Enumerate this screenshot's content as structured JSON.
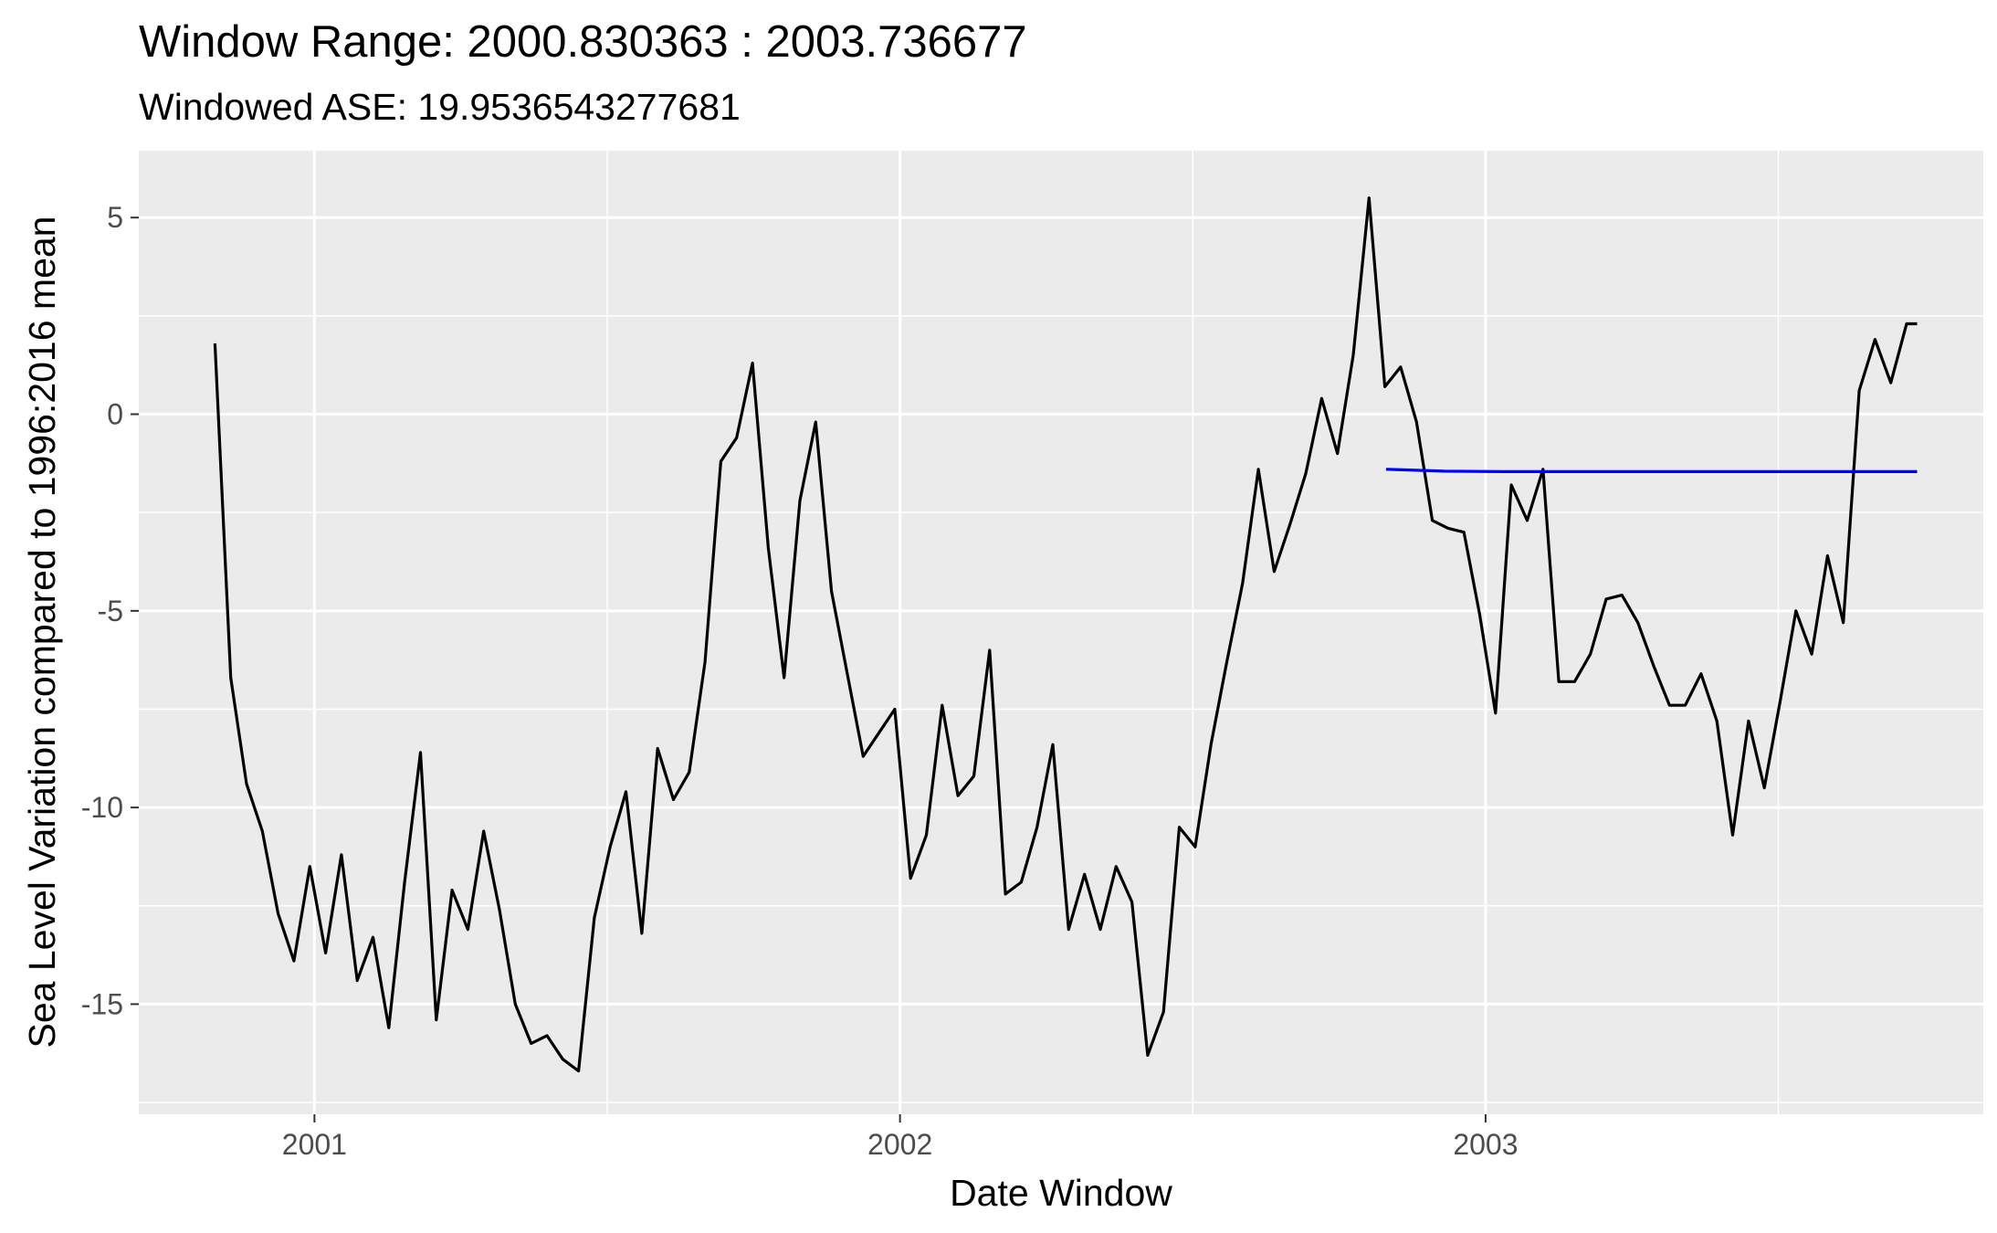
{
  "chart_data": {
    "type": "line",
    "title": "Window Range: 2000.830363 : 2003.736677",
    "subtitle": "Windowed ASE: 19.9536543277681",
    "xlabel": "Date Window",
    "ylabel": "Sea Level Variation compared to 1996:2016 mean",
    "xlim": [
      2000.7,
      2003.85
    ],
    "ylim": [
      -17.8,
      6.7
    ],
    "x_ticks": [
      2001,
      2002,
      2003
    ],
    "x_tick_labels": [
      "2001",
      "2002",
      "2003"
    ],
    "y_ticks": [
      5,
      0,
      -5,
      -10,
      -15
    ],
    "y_tick_labels": [
      "5",
      "0",
      "-5",
      "-10",
      "-15"
    ],
    "grid": true,
    "legend": "none",
    "colors": {
      "panel": "#ebebeb",
      "grid": "#ffffff",
      "observed": "#000000",
      "forecast": "#0000ff"
    },
    "series": [
      {
        "color": "#000000",
        "x": [
          2000.83,
          2000.857,
          2000.884,
          2000.911,
          2000.938,
          2000.965,
          2000.992,
          2001.019,
          2001.046,
          2001.073,
          2001.1,
          2001.127,
          2001.154,
          2001.181,
          2001.208,
          2001.235,
          2001.262,
          2001.289,
          2001.316,
          2001.343,
          2001.37,
          2001.397,
          2001.424,
          2001.451,
          2001.478,
          2001.505,
          2001.532,
          2001.559,
          2001.586,
          2001.613,
          2001.64,
          2001.667,
          2001.694,
          2001.721,
          2001.748,
          2001.775,
          2001.802,
          2001.829,
          2001.856,
          2001.883,
          2001.91,
          2001.937,
          2001.964,
          2001.991,
          2002.018,
          2002.045,
          2002.072,
          2002.099,
          2002.126,
          2002.153,
          2002.18,
          2002.207,
          2002.234,
          2002.261,
          2002.288,
          2002.315,
          2002.342,
          2002.369,
          2002.396,
          2002.423,
          2002.45,
          2002.477,
          2002.504,
          2002.531,
          2002.558,
          2002.585,
          2002.612,
          2002.639,
          2002.666,
          2002.693,
          2002.72,
          2002.747,
          2002.774,
          2002.801,
          2002.828,
          2002.855,
          2002.882,
          2002.909,
          2002.936,
          2002.963,
          2002.99,
          2003.017,
          2003.044,
          2003.071,
          2003.098,
          2003.125,
          2003.152,
          2003.179,
          2003.206,
          2003.233,
          2003.26,
          2003.287,
          2003.314,
          2003.341,
          2003.368,
          2003.395,
          2003.422,
          2003.449,
          2003.476,
          2003.503,
          2003.53,
          2003.557,
          2003.584,
          2003.611,
          2003.638,
          2003.665,
          2003.692,
          2003.719,
          2003.737
        ],
        "values": [
          1.8,
          -6.7,
          -9.4,
          -10.6,
          -12.7,
          -13.9,
          -11.5,
          -13.7,
          -11.2,
          -14.4,
          -13.3,
          -15.6,
          -11.9,
          -8.6,
          -15.4,
          -12.1,
          -13.1,
          -10.6,
          -12.6,
          -15.0,
          -16.0,
          -15.8,
          -16.4,
          -16.7,
          -12.8,
          -11.0,
          -9.6,
          -13.2,
          -8.5,
          -9.8,
          -9.1,
          -6.3,
          -1.2,
          -0.6,
          1.3,
          -3.4,
          -6.7,
          -2.2,
          -0.2,
          -4.5,
          -6.6,
          -8.7,
          -8.1,
          -7.5,
          -11.8,
          -10.7,
          -7.4,
          -9.7,
          -9.2,
          -6.0,
          -12.2,
          -11.9,
          -10.5,
          -8.4,
          -13.1,
          -11.7,
          -13.1,
          -11.5,
          -12.4,
          -16.3,
          -15.2,
          -10.5,
          -11.0,
          -8.4,
          -6.3,
          -4.3,
          -1.4,
          -4.0,
          -2.8,
          -1.5,
          0.4,
          -1.0,
          1.5,
          5.5,
          0.7,
          1.2,
          -0.2,
          -2.7,
          -2.9,
          -3.0,
          -5.1,
          -7.6,
          -1.8,
          -2.7,
          -1.4,
          -6.8,
          -6.8,
          -6.1,
          -4.7,
          -4.6,
          -5.3,
          -6.4,
          -7.4,
          -7.4,
          -6.6,
          -7.8,
          -10.7,
          -7.8,
          -9.5,
          -7.3,
          -5.0,
          -6.1,
          -3.6,
          -5.3,
          0.6,
          1.9,
          0.8,
          2.3,
          2.3
        ]
      },
      {
        "color": "#0000ff",
        "x": [
          2002.83,
          2002.93,
          2003.03,
          2003.13,
          2003.23,
          2003.33,
          2003.43,
          2003.53,
          2003.63,
          2003.737
        ],
        "values": [
          -1.4,
          -1.45,
          -1.46,
          -1.46,
          -1.46,
          -1.46,
          -1.46,
          -1.46,
          -1.46,
          -1.46
        ]
      }
    ]
  }
}
